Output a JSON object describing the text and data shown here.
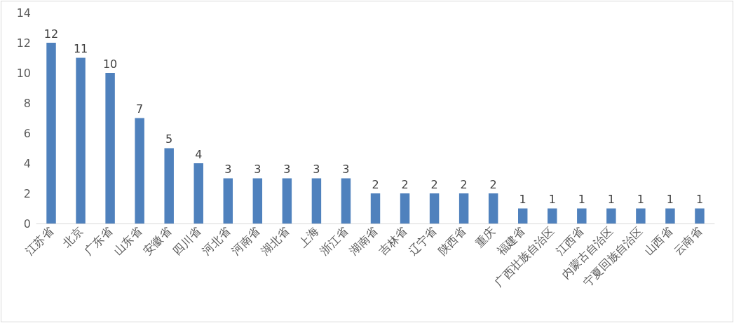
{
  "chart_data": {
    "type": "bar",
    "categories": [
      "江苏省",
      "北京",
      "广东省",
      "山东省",
      "安徽省",
      "四川省",
      "河北省",
      "河南省",
      "湖北省",
      "上海",
      "浙江省",
      "湖南省",
      "吉林省",
      "辽宁省",
      "陕西省",
      "重庆",
      "福建省",
      "广西壮族自治区",
      "江西省",
      "内蒙古自治区",
      "宁夏回族自治区",
      "山西省",
      "云南省"
    ],
    "values": [
      12,
      11,
      10,
      7,
      5,
      4,
      3,
      3,
      3,
      3,
      3,
      2,
      2,
      2,
      2,
      2,
      1,
      1,
      1,
      1,
      1,
      1,
      1
    ],
    "color": "#4f81bd",
    "ylim": [
      0,
      14
    ],
    "yticks": [
      0,
      2,
      4,
      6,
      8,
      10,
      12,
      14
    ],
    "grid": false,
    "data_labels": true
  }
}
